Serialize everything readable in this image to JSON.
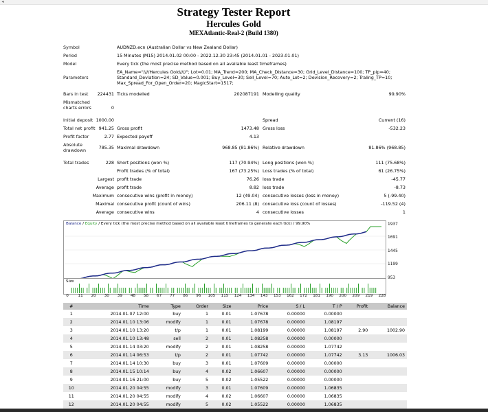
{
  "header": {
    "title": "Strategy Tester Report",
    "ea_name": "Hercules Gold",
    "account": "MEXAtlantic-Real-2 (Build 1380)"
  },
  "info": {
    "symbol_label": "Symbol",
    "symbol": "AUDNZD.ecn (Australian Dollar vs New Zealand Dollar)",
    "period_label": "Period",
    "period": "15 Minutes (M15) 2014.01.02 00:00 - 2022.12.30 23:45 (2014.01.01 - 2023.01.01)",
    "model_label": "Model",
    "model": "Every tick (the most precise method based on all available least timeframes)",
    "parameters_label": "Parameters",
    "parameters_line1": "EA_Name=\"////Hercules Gold////\"; Lot=0.01; MA_Trend=200; MA_Check_Distance=30; Grid_Level_Distance=100; TP_pip=40;",
    "parameters_line2": "Standard_Deviation=24; SD_Value=0.001; Buy_Level=30; Sell_Level=70; Auto_Lot=2; Devision_Recovery=2; Traling_TP=10;",
    "parameters_line3": "Max_Spread_For_Open_Order=20; MagicStart=1517;"
  },
  "summary": {
    "bars_label": "Bars in test",
    "bars": "224431",
    "ticks_label": "Ticks modelled",
    "ticks": "202087191",
    "quality_label": "Modelling quality",
    "quality": "99.90%",
    "mismatch_label1": "Mismatched",
    "mismatch_label2": "charts errors",
    "mismatch": "0",
    "deposit_label": "Initial deposit",
    "deposit": "1000.00",
    "spread_label": "Spread",
    "spread": "Current (16)",
    "net_label": "Total net profit",
    "net": "941.25",
    "gross_profit_label": "Gross profit",
    "gross_profit": "1473.48",
    "gross_loss_label": "Gross loss",
    "gross_loss": "-532.23",
    "pf_label": "Profit factor",
    "pf": "2.77",
    "ep_label": "Expected payoff",
    "ep": "4.13",
    "abs_dd_label1": "Absolute",
    "abs_dd_label2": "drawdown",
    "abs_dd": "785.35",
    "max_dd_label": "Maximal drawdown",
    "max_dd": "968.85 (81.86%)",
    "rel_dd_label": "Relative drawdown",
    "rel_dd": "81.86% (968.85)",
    "trades_label": "Total trades",
    "trades": "228",
    "short_label": "Short positions (won %)",
    "short": "117 (70.94%)",
    "long_label": "Long positions (won %)",
    "long": "111 (75.68%)",
    "pt_label": "Profit trades (% of total)",
    "pt": "167 (73.25%)",
    "lt_label": "Loss trades (% of total)",
    "lt": "61 (26.75%)",
    "largest_label": "Largest",
    "largest_profit_label": "profit trade",
    "largest_profit": "76.26",
    "largest_loss_label": "loss trade",
    "largest_loss": "-45.77",
    "average_label": "Average",
    "avg_profit_label": "profit trade",
    "avg_profit": "8.82",
    "avg_loss_label": "loss trade",
    "avg_loss": "-8.73",
    "maximum_label": "Maximum",
    "mcw_label": "consecutive wins (profit in money)",
    "mcw": "12 (49.04)",
    "mcl_label": "consecutive losses (loss in money)",
    "mcl": "5 (-99.40)",
    "maximal_label": "Maximal",
    "mcp_label": "consecutive profit (count of wins)",
    "mcp": "206.11 (8)",
    "mcloss_label": "consecutive loss (count of losses)",
    "mcloss": "-119.52 (4)",
    "average2_label": "Average",
    "acw_label": "consecutive wins",
    "acw": "4",
    "acl_label": "consecutive losses",
    "acl": "1"
  },
  "chart": {
    "legend_balance": "Balance",
    "legend_sep": " / ",
    "legend_equity": "Equity",
    "legend_rest": " / Every tick (the most precise method based on all available least timeframes to generate each tick) / 99.90%",
    "size_label": "Size",
    "y_ticks": [
      "1937",
      "1691",
      "1445",
      "1199",
      "953"
    ],
    "x_ticks": [
      "0",
      "11",
      "20",
      "30",
      "39",
      "48",
      "58",
      "67",
      "77",
      "86",
      "96",
      "105",
      "115",
      "124",
      "134",
      "143",
      "153",
      "162",
      "172",
      "181",
      "190",
      "200",
      "209",
      "219",
      "228"
    ],
    "balance_color": "#1f2b8a",
    "equity_color": "#2aa02a"
  },
  "deals": {
    "columns": [
      "#",
      "Time",
      "Type",
      "Order",
      "Size",
      "Price",
      "S / L",
      "T / P",
      "Profit",
      "Balance"
    ],
    "rows": [
      [
        "1",
        "2014.01.07 12:00",
        "buy",
        "1",
        "0.01",
        "1.07678",
        "0.00000",
        "0.00000",
        "",
        ""
      ],
      [
        "2",
        "2014.01.10 13:06",
        "modify",
        "1",
        "0.01",
        "1.07678",
        "0.00000",
        "1.08197",
        "",
        ""
      ],
      [
        "3",
        "2014.01.10 13:20",
        "t/p",
        "1",
        "0.01",
        "1.08199",
        "0.00000",
        "1.08197",
        "2.90",
        "1002.90"
      ],
      [
        "4",
        "2014.01.10 13:48",
        "sell",
        "2",
        "0.01",
        "1.08258",
        "0.00000",
        "0.00000",
        "",
        ""
      ],
      [
        "5",
        "2014.01.14 03:20",
        "modify",
        "2",
        "0.01",
        "1.08258",
        "0.00000",
        "1.07742",
        "",
        ""
      ],
      [
        "6",
        "2014.01.14 06:53",
        "t/p",
        "2",
        "0.01",
        "1.07742",
        "0.00000",
        "1.07742",
        "3.13",
        "1006.03"
      ],
      [
        "7",
        "2014.01.14 10:30",
        "buy",
        "3",
        "0.01",
        "1.07609",
        "0.00000",
        "0.00000",
        "",
        ""
      ],
      [
        "8",
        "2014.01.15 10:14",
        "buy",
        "4",
        "0.02",
        "1.06607",
        "0.00000",
        "0.00000",
        "",
        ""
      ],
      [
        "9",
        "2014.01.16 21:00",
        "buy",
        "5",
        "0.02",
        "1.05522",
        "0.00000",
        "0.00000",
        "",
        ""
      ],
      [
        "10",
        "2014.01.20 04:55",
        "modify",
        "3",
        "0.01",
        "1.07609",
        "0.00000",
        "1.06835",
        "",
        ""
      ],
      [
        "11",
        "2014.01.20 04:55",
        "modify",
        "4",
        "0.02",
        "1.06607",
        "0.00000",
        "1.06835",
        "",
        ""
      ],
      [
        "12",
        "2014.01.20 04:55",
        "modify",
        "5",
        "0.02",
        "1.05522",
        "0.00000",
        "1.06835",
        "",
        ""
      ]
    ]
  }
}
